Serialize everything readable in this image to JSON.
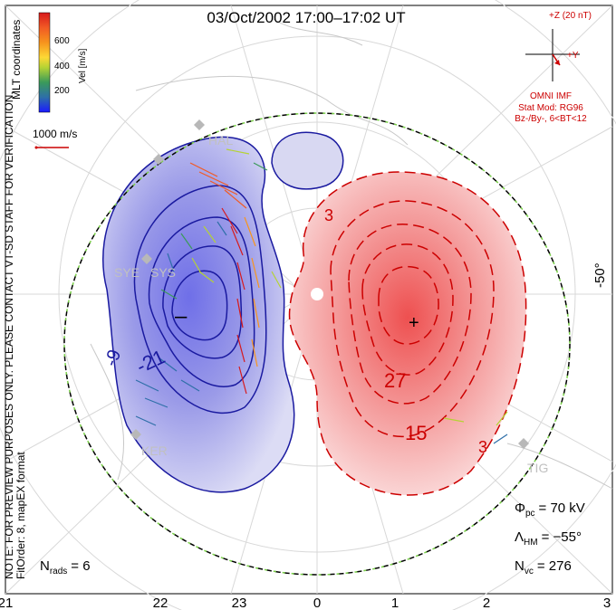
{
  "title": "03/Oct/2002 17:00–17:02 UT",
  "side_notice": "NOTE: FOR PREVIEW PURPOSES ONLY. PLEASE CONTACT VT-SD STAFF FOR VERIFICATION.",
  "side_fit": "FitOrder: 8, mapEX format",
  "mlt_label": "MLT coordinates",
  "colorbar": {
    "label": "Vel [m/s]",
    "ticks": [
      "600",
      "400",
      "200"
    ],
    "colors": [
      "#d7191c",
      "#f15a24",
      "#f7941d",
      "#fdd835",
      "#b5d334",
      "#5cbb5a",
      "#3a8ea0",
      "#2e5fa8",
      "#1a1aff"
    ]
  },
  "scale_vector": "1000 m/s",
  "imf": {
    "z_label": "+Z (20 nT)",
    "y_label": "+Y",
    "source": "OMNI IMF",
    "model": "Stat Mod: RG96",
    "condition": "Bz-/By-, 6<BT<12",
    "color": "#cc0000"
  },
  "lat_label": "-50°",
  "stations": [
    "SYE",
    "SYS",
    "KER",
    "HAL",
    "TIG"
  ],
  "contours": {
    "negative_labels": [
      "-9",
      "-21"
    ],
    "positive_labels": [
      "3",
      "27",
      "15",
      "3"
    ],
    "min_marker": "–",
    "max_marker": "+",
    "negative_color": "#1a1aa0",
    "positive_color": "#cc0000"
  },
  "stats": {
    "phi_pc": "= 70 kV",
    "lambda_hm": "= −55°",
    "n_vc": "= 276",
    "n_rads": "= 6"
  },
  "mlt_axis": [
    "21",
    "22",
    "23",
    "0",
    "1",
    "2",
    "3"
  ]
}
